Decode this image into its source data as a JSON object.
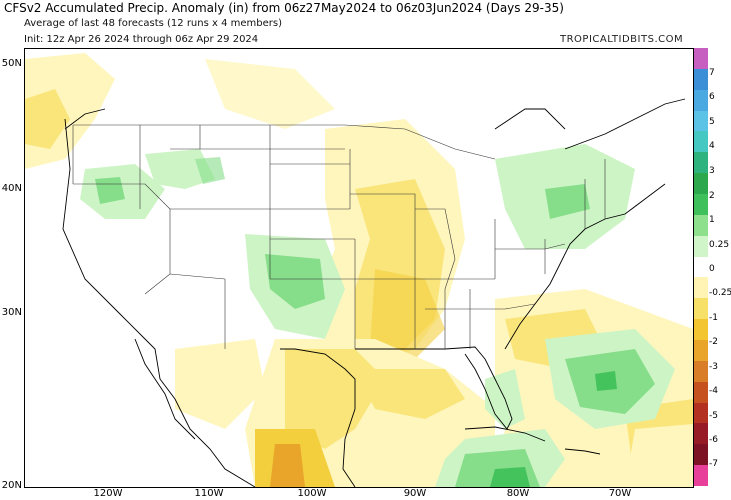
{
  "header": {
    "title": "CFSv2 Accumulated Precip. Anomaly (in) from 06z27May2024 to 06z03Jun2024 (Days 29-35)",
    "subtitle1": "Average of last 48 forecasts (12 runs x 4 members)",
    "subtitle2": "Init: 12z Apr 26 2024 through 06z Apr 29 2024",
    "brand": "TROPICALTIDBITS.COM"
  },
  "axes": {
    "lat_labels": [
      "50N",
      "40N",
      "30N",
      "20N"
    ],
    "lon_labels": [
      "120W",
      "110W",
      "100W",
      "90W",
      "80W",
      "70W"
    ]
  },
  "colorbar": {
    "labels": [
      "7",
      "6",
      "5",
      "4",
      "3",
      "2",
      "1",
      "0.25",
      "0",
      "-0.25",
      "-1",
      "-2",
      "-3",
      "-4",
      "-5",
      "-6",
      "-7"
    ],
    "colors": [
      "#c65fc0",
      "#3b8fd6",
      "#4aa9e0",
      "#5cc3e6",
      "#45c7c2",
      "#2fb37e",
      "#2ea84d",
      "#3fc05a",
      "#8fe08d",
      "#cff5c9",
      "#ffffff",
      "#fff4b3",
      "#f7e067",
      "#f2c531",
      "#e9a42a",
      "#d97d28",
      "#c5521f",
      "#b23120",
      "#961b26",
      "#7c1223",
      "#e8409a"
    ]
  },
  "map": {
    "colors": {
      "light_yellow": "#fff6bd",
      "yellow": "#f9e57a",
      "dark_yellow": "#f3cf3e",
      "light_green": "#cdf4c5",
      "green": "#86dd8a",
      "dark_green": "#44c35c",
      "land_line": "#000000",
      "state_line": "#333333"
    }
  }
}
